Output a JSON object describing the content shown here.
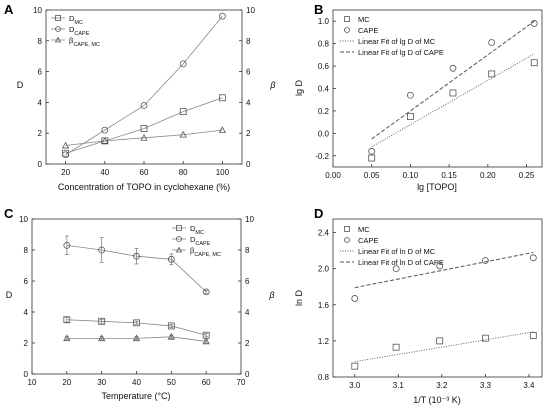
{
  "chart_data": [
    {
      "panel": "A",
      "type": "line",
      "xlabel": "Concentration of TOPO in cyclohexane (%)",
      "ylabel": "D",
      "y2label": "β",
      "xlim": [
        10,
        110
      ],
      "ylim": [
        0,
        10
      ],
      "y2lim": [
        0,
        10
      ],
      "xticks": [
        "20",
        "40",
        "60",
        "80",
        "100"
      ],
      "yticks": [
        "0",
        "2",
        "4",
        "6",
        "8",
        "10"
      ],
      "y2ticks": [
        "0",
        "2",
        "4",
        "6",
        "8",
        "10"
      ],
      "legend_position": "top-left",
      "x": [
        20,
        40,
        60,
        80,
        100
      ],
      "series": [
        {
          "name": "D",
          "name_sub": "MC",
          "marker": "square",
          "values": [
            0.7,
            1.5,
            2.3,
            3.4,
            4.3
          ]
        },
        {
          "name": "D",
          "name_sub": "CAPE",
          "marker": "circle",
          "values": [
            0.6,
            2.2,
            3.8,
            6.5,
            9.6
          ]
        },
        {
          "name": "β",
          "name_sub": "CAPE, MC",
          "marker": "triangle",
          "axis": "right",
          "values": [
            1.2,
            1.5,
            1.7,
            1.9,
            2.2
          ]
        }
      ]
    },
    {
      "panel": "B",
      "type": "scatter",
      "xlabel": "lg [TOPO]",
      "ylabel": "lg D",
      "xlim": [
        0.0,
        0.27
      ],
      "ylim": [
        -0.3,
        1.1
      ],
      "xticks": [
        "0.00",
        "0.05",
        "0.10",
        "0.15",
        "0.20",
        "0.25"
      ],
      "yticks": [
        "-0.2",
        "0.0",
        "0.2",
        "0.4",
        "0.6",
        "0.8",
        "1.0"
      ],
      "legend_position": "top-left",
      "x": [
        0.05,
        0.1,
        0.155,
        0.205,
        0.26
      ],
      "series": [
        {
          "name": "MC",
          "marker": "square",
          "values": [
            -0.22,
            0.15,
            0.36,
            0.53,
            0.63
          ]
        },
        {
          "name": "CAPE",
          "marker": "circle",
          "values": [
            -0.16,
            0.34,
            0.58,
            0.81,
            0.98
          ]
        }
      ],
      "fits": [
        {
          "name": "Linear Fit of lg D of MC",
          "style": "dotted",
          "x": [
            0.05,
            0.26
          ],
          "y": [
            -0.12,
            0.71
          ]
        },
        {
          "name": "Linear Fit of lg D of CAPE",
          "style": "dashed",
          "x": [
            0.05,
            0.26
          ],
          "y": [
            -0.05,
            1.0
          ]
        }
      ]
    },
    {
      "panel": "C",
      "type": "line",
      "xlabel": "Temperature (°C)",
      "ylabel": "D",
      "y2label": "β",
      "xlim": [
        10,
        70
      ],
      "ylim": [
        0,
        10
      ],
      "y2lim": [
        0,
        10
      ],
      "xticks": [
        "10",
        "20",
        "30",
        "40",
        "50",
        "60",
        "70"
      ],
      "yticks": [
        "0",
        "2",
        "4",
        "6",
        "8",
        "10"
      ],
      "y2ticks": [
        "0",
        "2",
        "4",
        "6",
        "8",
        "10"
      ],
      "legend_position": "top-right",
      "x": [
        20,
        30,
        40,
        50,
        60
      ],
      "series": [
        {
          "name": "D",
          "name_sub": "MC",
          "marker": "square",
          "values": [
            3.5,
            3.4,
            3.3,
            3.1,
            2.5
          ],
          "errors": [
            0.15,
            0.12,
            0.1,
            0.1,
            0.1
          ]
        },
        {
          "name": "D",
          "name_sub": "CAPE",
          "marker": "circle",
          "values": [
            8.3,
            8.0,
            7.6,
            7.4,
            5.3
          ],
          "errors": [
            0.6,
            0.8,
            0.5,
            0.35,
            0.1
          ]
        },
        {
          "name": "β",
          "name_sub": "CAPE, MC",
          "marker": "triangle",
          "axis": "right",
          "values": [
            2.3,
            2.3,
            2.3,
            2.4,
            2.1
          ],
          "errors": [
            0.1,
            0.1,
            0.1,
            0.1,
            0.1
          ]
        }
      ]
    },
    {
      "panel": "D",
      "type": "scatter",
      "xlabel": "1/T (10⁻³ K)",
      "ylabel": "ln D",
      "xlim": [
        2.95,
        3.43
      ],
      "ylim": [
        0.8,
        2.55
      ],
      "xticks": [
        "3.0",
        "3.1",
        "3.2",
        "3.3",
        "3.4"
      ],
      "yticks": [
        "0.8",
        "1.2",
        "1.6",
        "2.0",
        "2.4"
      ],
      "legend_position": "top-left",
      "x": [
        3.0,
        3.095,
        3.195,
        3.3,
        3.41
      ],
      "series": [
        {
          "name": "MC",
          "marker": "square",
          "values": [
            0.92,
            1.13,
            1.2,
            1.23,
            1.26
          ]
        },
        {
          "name": "CAPE",
          "marker": "circle",
          "values": [
            1.67,
            2.0,
            2.03,
            2.09,
            2.12
          ]
        }
      ],
      "fits": [
        {
          "name": "Linear Fit of ln D of MC",
          "style": "dotted",
          "x": [
            3.0,
            3.41
          ],
          "y": [
            0.97,
            1.3
          ]
        },
        {
          "name": "Linear Fit of ln D of CAPE",
          "style": "dashed",
          "x": [
            3.0,
            3.41
          ],
          "y": [
            1.79,
            2.18
          ]
        }
      ]
    }
  ]
}
